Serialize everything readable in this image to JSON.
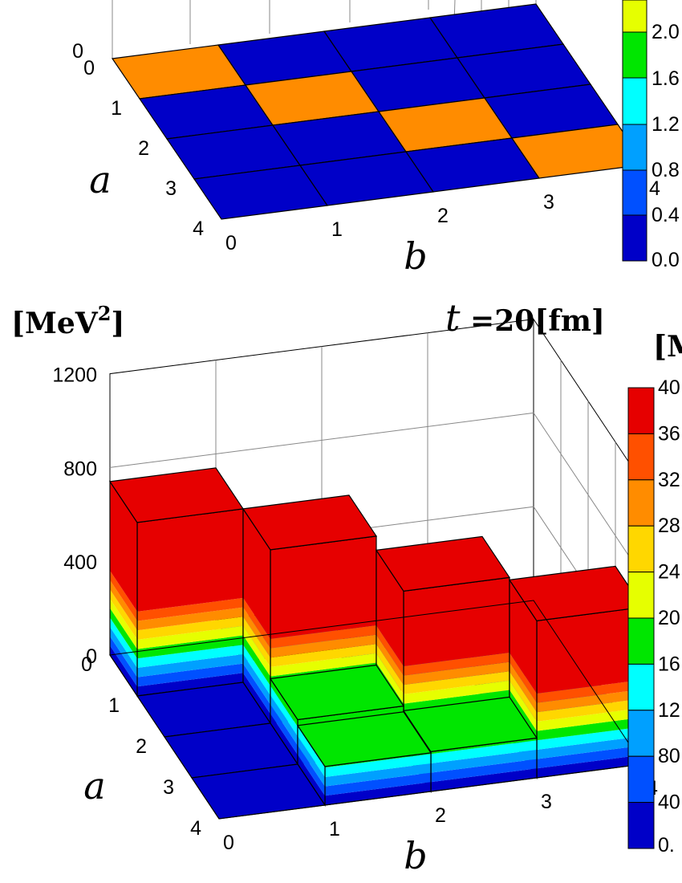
{
  "chart_data": [
    {
      "type": "bar3d",
      "x_name": "b",
      "y_name": "a",
      "x_ticks": [
        "0",
        "1",
        "2",
        "3",
        "4"
      ],
      "y_ticks": [
        "0",
        "1",
        "2",
        "3",
        "4"
      ],
      "z_ticks": [
        "0"
      ],
      "heights": [
        [
          0,
          0,
          0,
          0
        ],
        [
          0,
          0,
          0,
          0
        ],
        [
          0,
          0,
          0,
          0
        ],
        [
          0,
          0,
          0,
          0
        ]
      ],
      "cell_colors": [
        [
          "#ff8c00",
          "#0000c8",
          "#0000c8",
          "#0000c8"
        ],
        [
          "#0000c8",
          "#ff8c00",
          "#0000c8",
          "#0000c8"
        ],
        [
          "#0000c8",
          "#0000c8",
          "#ff8c00",
          "#0000c8"
        ],
        [
          "#0000c8",
          "#0000c8",
          "#0000c8",
          "#ff8c00"
        ]
      ],
      "colorbar_labels": [
        "2.0",
        "1.6",
        "1.2",
        "0.8",
        "0.4",
        "0.0"
      ]
    },
    {
      "type": "bar3d",
      "zlabel_main": "[MeV",
      "zlabel_sup": "2",
      "zlabel_end": "]",
      "title_var": "t",
      "title_eq": " =20[fm]",
      "colorbar_title": "[M",
      "x_name": "b",
      "y_name": "a",
      "x_ticks": [
        "0",
        "1",
        "2",
        "3",
        "4"
      ],
      "y_ticks": [
        "0",
        "1",
        "2",
        "3",
        "4"
      ],
      "z_ticks": [
        "0",
        "400",
        "800",
        "1200"
      ],
      "zlim": [
        0,
        1200
      ],
      "heights": [
        [
          740,
          90,
          0,
          0
        ],
        [
          0,
          740,
          70,
          0
        ],
        [
          0,
          190,
          680,
          65
        ],
        [
          0,
          165,
          170,
          670
        ]
      ],
      "colorbar_labels": [
        "40",
        "36",
        "32",
        "28",
        "24",
        "20",
        "16",
        "12",
        "80",
        "40",
        "0."
      ]
    }
  ],
  "colors": {
    "dark_blue": "#0000c8",
    "blue": "#0050ff",
    "sky": "#00a0ff",
    "cyan": "#00ffff",
    "green": "#00e600",
    "yellow": "#e6ff00",
    "gold": "#ffd700",
    "orange": "#ff8c00",
    "orange_red": "#ff5000",
    "red": "#e60000"
  }
}
